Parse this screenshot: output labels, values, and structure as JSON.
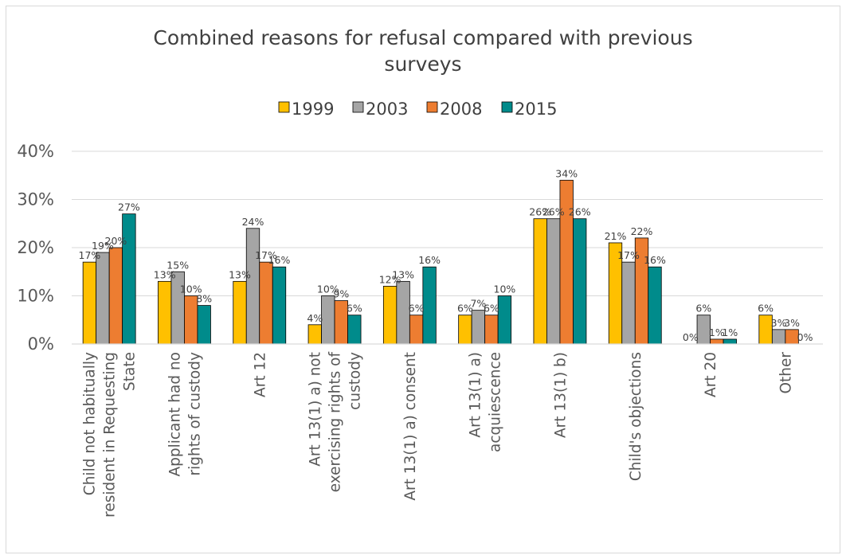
{
  "chart_data": {
    "type": "bar",
    "title_lines": [
      "Combined reasons for refusal compared with previous",
      "surveys"
    ],
    "xlabel": "",
    "ylabel": "",
    "ylim": [
      0,
      40
    ],
    "yticks": [
      "0%",
      "10%",
      "20%",
      "30%",
      "40%"
    ],
    "grid": true,
    "legend_position": "top",
    "categories": [
      [
        "Child not habitually",
        "resident in Requesting",
        "State"
      ],
      [
        "Applicant had no",
        "rights of custody"
      ],
      [
        "Art 12"
      ],
      [
        "Art 13(1) a) not",
        "exercising rights of",
        "custody"
      ],
      [
        "Art 13(1) a) consent"
      ],
      [
        "Art 13(1) a)",
        "acquiescence"
      ],
      [
        "Art 13(1) b)"
      ],
      [
        "Child's objections"
      ],
      [
        "Art 20"
      ],
      [
        "Other"
      ]
    ],
    "series": [
      {
        "name": "1999",
        "color": "#ffc000",
        "values": [
          17,
          13,
          13,
          4,
          12,
          6,
          26,
          21,
          0,
          6
        ],
        "labels": [
          "17%",
          "13%",
          "13%",
          "4%",
          "12%",
          "6%",
          "26%",
          "21%",
          "0%",
          "6%"
        ]
      },
      {
        "name": "2003",
        "color": "#a5a5a5",
        "values": [
          19,
          15,
          24,
          10,
          13,
          7,
          26,
          17,
          6,
          3
        ],
        "labels": [
          "19%",
          "15%",
          "24%",
          "10%",
          "13%",
          "7%",
          "26%",
          "17%",
          "6%",
          "3%"
        ]
      },
      {
        "name": "2008",
        "color": "#ed7d31",
        "values": [
          20,
          10,
          17,
          9,
          6,
          6,
          34,
          22,
          1,
          3
        ],
        "labels": [
          "20%",
          "10%",
          "17%",
          "9%",
          "6%",
          "6%",
          "34%",
          "22%",
          "1%",
          "3%"
        ]
      },
      {
        "name": "2015",
        "color": "#008b8b",
        "values": [
          27,
          8,
          16,
          6,
          16,
          10,
          26,
          16,
          1,
          0
        ],
        "labels": [
          "27%",
          "8%",
          "16%",
          "6%",
          "16%",
          "10%",
          "26%",
          "16%",
          "1%",
          "0%"
        ]
      }
    ]
  }
}
